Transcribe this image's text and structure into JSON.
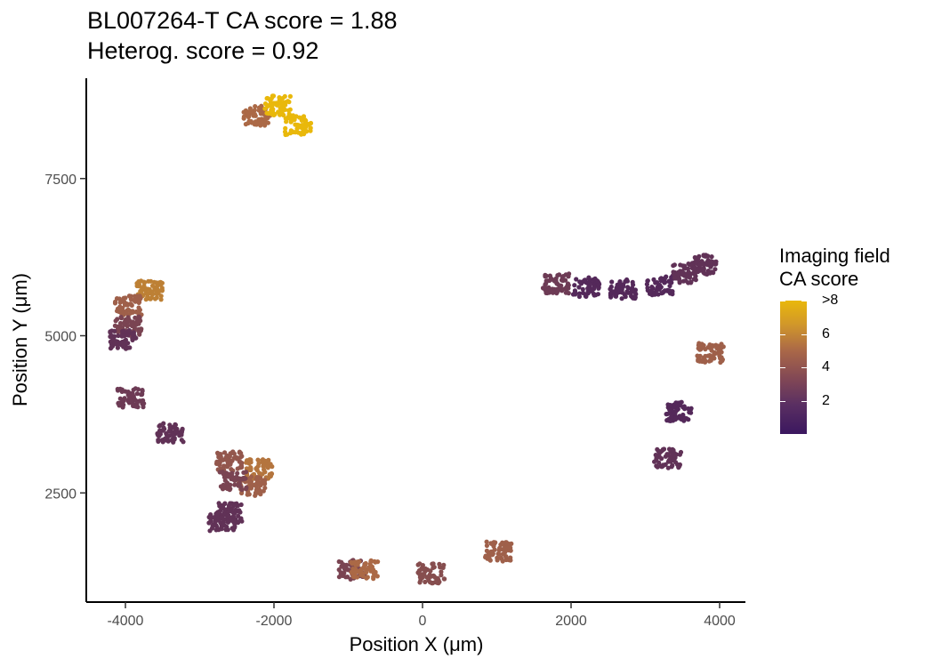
{
  "chart_data": {
    "type": "scatter",
    "title": "BL007264-T  CA score = 1.88",
    "subtitle": "Heterog. score = 0.92",
    "xlabel": "Position X (μm)",
    "ylabel": "Position Y (μm)",
    "xlim": [
      -4500,
      4400
    ],
    "ylim": [
      800,
      9100
    ],
    "x_ticks": [
      -4000,
      -2000,
      0,
      2000,
      4000
    ],
    "x_tick_labels": [
      "-4000",
      "-2000",
      "0",
      "2000",
      "4000"
    ],
    "y_ticks": [
      2500,
      5000,
      7500
    ],
    "y_tick_labels": [
      "2500",
      "5000",
      "7500"
    ],
    "grid": false,
    "legend": {
      "title_line1": "Imaging field",
      "title_line2": "CA score",
      "placement": "right",
      "labels": [
        ">8",
        "6",
        "4",
        "2"
      ],
      "label_values": [
        8,
        6,
        4,
        2
      ],
      "range": [
        0,
        8
      ]
    },
    "colors": {
      "low": "#3b175f",
      "mid": "#a96748",
      "high": "#e9b80b"
    },
    "clusters": [
      {
        "x": -2230,
        "y": 8500,
        "score": 4.5
      },
      {
        "x": -1950,
        "y": 8660,
        "score": 8
      },
      {
        "x": -1680,
        "y": 8350,
        "score": 8
      },
      {
        "x": -3670,
        "y": 5720,
        "score": 5.5
      },
      {
        "x": -3960,
        "y": 5480,
        "score": 4
      },
      {
        "x": -3960,
        "y": 5150,
        "score": 2.5
      },
      {
        "x": -4030,
        "y": 4930,
        "score": 1.5
      },
      {
        "x": -3930,
        "y": 4010,
        "score": 2
      },
      {
        "x": -3390,
        "y": 3450,
        "score": 1.5
      },
      {
        "x": -2600,
        "y": 3000,
        "score": 3.5
      },
      {
        "x": -2200,
        "y": 2880,
        "score": 5
      },
      {
        "x": -2300,
        "y": 2600,
        "score": 4
      },
      {
        "x": -2550,
        "y": 2680,
        "score": 2.5
      },
      {
        "x": -2600,
        "y": 2180,
        "score": 1.5
      },
      {
        "x": -2700,
        "y": 2050,
        "score": 1.5
      },
      {
        "x": -950,
        "y": 1280,
        "score": 2.5
      },
      {
        "x": -780,
        "y": 1280,
        "score": 4.5
      },
      {
        "x": 120,
        "y": 1220,
        "score": 3
      },
      {
        "x": 1020,
        "y": 1570,
        "score": 4
      },
      {
        "x": 1800,
        "y": 5830,
        "score": 2
      },
      {
        "x": 2200,
        "y": 5770,
        "score": 1
      },
      {
        "x": 2700,
        "y": 5740,
        "score": 1
      },
      {
        "x": 3200,
        "y": 5800,
        "score": 1
      },
      {
        "x": 3550,
        "y": 5990,
        "score": 1.5
      },
      {
        "x": 3780,
        "y": 6130,
        "score": 1.5
      },
      {
        "x": 3880,
        "y": 4730,
        "score": 4
      },
      {
        "x": 3450,
        "y": 3790,
        "score": 1
      },
      {
        "x": 3300,
        "y": 3050,
        "score": 1.5
      }
    ]
  }
}
